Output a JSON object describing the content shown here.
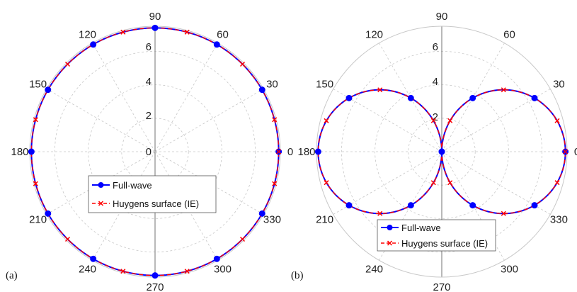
{
  "chart_data": [
    {
      "type": "polar",
      "panel_label": "(a)",
      "angular_ticks": [
        "90",
        "60",
        "30",
        "0",
        "330",
        "300",
        "270",
        "240",
        "210",
        "180",
        "150",
        "120"
      ],
      "radial_ticks": [
        "0",
        "2",
        "4",
        "6"
      ],
      "rlim": [
        0,
        7.5
      ],
      "grid": true,
      "legend_position": "center",
      "series": [
        {
          "name": "Full-wave",
          "color": "#0000ff",
          "marker": "circle",
          "theta_deg": [
            0,
            30,
            60,
            90,
            120,
            150,
            180,
            210,
            240,
            270,
            300,
            330
          ],
          "r": [
            7.4,
            7.4,
            7.4,
            7.4,
            7.4,
            7.4,
            7.4,
            7.4,
            7.4,
            7.4,
            7.4,
            7.4
          ]
        },
        {
          "name": "Huygens surface (IE)",
          "color": "#ff0000",
          "marker": "x",
          "theta_deg": [
            0,
            15,
            45,
            75,
            105,
            135,
            165,
            195,
            225,
            255,
            285,
            315,
            345
          ],
          "r": [
            7.4,
            7.4,
            7.4,
            7.4,
            7.4,
            7.4,
            7.4,
            7.4,
            7.4,
            7.4,
            7.4,
            7.4,
            7.4
          ]
        }
      ]
    },
    {
      "type": "polar",
      "panel_label": "(b)",
      "angular_ticks": [
        "90",
        "60",
        "30",
        "0",
        "330",
        "300",
        "270",
        "240",
        "210",
        "180",
        "150",
        "120"
      ],
      "radial_ticks": [
        "2",
        "4",
        "6"
      ],
      "rlim": [
        0,
        7.5
      ],
      "grid": true,
      "legend_position": "bottom-center",
      "series": [
        {
          "name": "Full-wave",
          "color": "#0000ff",
          "marker": "circle",
          "theta_deg": [
            0,
            30,
            60,
            90,
            120,
            150,
            180,
            210,
            240,
            270,
            300,
            330
          ],
          "r": [
            7.4,
            6.41,
            3.7,
            0,
            3.7,
            6.41,
            7.4,
            6.41,
            3.7,
            0,
            3.7,
            6.41
          ]
        },
        {
          "name": "Huygens surface (IE)",
          "color": "#ff0000",
          "marker": "x",
          "theta_deg": [
            0,
            15,
            45,
            75,
            105,
            135,
            165,
            195,
            225,
            255,
            285,
            315,
            345
          ],
          "r": [
            7.4,
            7.15,
            5.23,
            1.92,
            1.92,
            5.23,
            7.15,
            7.15,
            5.23,
            1.92,
            1.92,
            5.23,
            7.15
          ]
        }
      ]
    }
  ]
}
